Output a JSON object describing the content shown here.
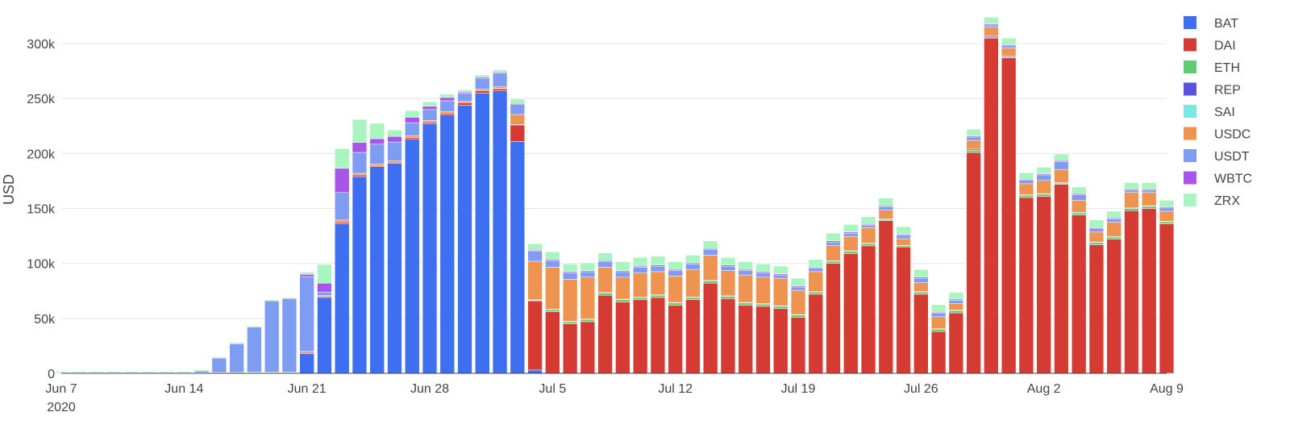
{
  "chart_data": {
    "type": "bar",
    "stacked": true,
    "ylabel": "USD",
    "xlabel": "",
    "ylim": [
      0,
      325000
    ],
    "grid": true,
    "legend_position": "right",
    "x_ticks": [
      {
        "date": "2020-06-07",
        "label": "Jun 7",
        "sub": "2020"
      },
      {
        "date": "2020-06-14",
        "label": "Jun 14",
        "sub": ""
      },
      {
        "date": "2020-06-21",
        "label": "Jun 21",
        "sub": ""
      },
      {
        "date": "2020-06-28",
        "label": "Jun 28",
        "sub": ""
      },
      {
        "date": "2020-07-05",
        "label": "Jul 5",
        "sub": ""
      },
      {
        "date": "2020-07-12",
        "label": "Jul 12",
        "sub": ""
      },
      {
        "date": "2020-07-19",
        "label": "Jul 19",
        "sub": ""
      },
      {
        "date": "2020-07-26",
        "label": "Jul 26",
        "sub": ""
      },
      {
        "date": "2020-08-02",
        "label": "Aug 2",
        "sub": ""
      },
      {
        "date": "2020-08-09",
        "label": "Aug 9",
        "sub": ""
      }
    ],
    "y_ticks": [
      {
        "value": 0,
        "label": "0"
      },
      {
        "value": 50000,
        "label": "50k"
      },
      {
        "value": 100000,
        "label": "100k"
      },
      {
        "value": 150000,
        "label": "150k"
      },
      {
        "value": 200000,
        "label": "200k"
      },
      {
        "value": 250000,
        "label": "250k"
      },
      {
        "value": 300000,
        "label": "300k"
      }
    ],
    "x": [
      "2020-06-07",
      "2020-06-08",
      "2020-06-09",
      "2020-06-10",
      "2020-06-11",
      "2020-06-12",
      "2020-06-13",
      "2020-06-14",
      "2020-06-15",
      "2020-06-16",
      "2020-06-17",
      "2020-06-18",
      "2020-06-19",
      "2020-06-20",
      "2020-06-21",
      "2020-06-22",
      "2020-06-23",
      "2020-06-24",
      "2020-06-25",
      "2020-06-26",
      "2020-06-27",
      "2020-06-28",
      "2020-06-29",
      "2020-06-30",
      "2020-07-01",
      "2020-07-02",
      "2020-07-03",
      "2020-07-04",
      "2020-07-05",
      "2020-07-06",
      "2020-07-07",
      "2020-07-08",
      "2020-07-09",
      "2020-07-10",
      "2020-07-11",
      "2020-07-12",
      "2020-07-13",
      "2020-07-14",
      "2020-07-15",
      "2020-07-16",
      "2020-07-17",
      "2020-07-18",
      "2020-07-19",
      "2020-07-20",
      "2020-07-21",
      "2020-07-22",
      "2020-07-23",
      "2020-07-24",
      "2020-07-25",
      "2020-07-26",
      "2020-07-27",
      "2020-07-28",
      "2020-07-29",
      "2020-07-30",
      "2020-07-31",
      "2020-08-01",
      "2020-08-02",
      "2020-08-03",
      "2020-08-04",
      "2020-08-05",
      "2020-08-06",
      "2020-08-07",
      "2020-08-08",
      "2020-08-09"
    ],
    "series": [
      {
        "name": "BAT",
        "color": "#3e6ff0",
        "values": [
          0,
          0,
          0,
          0,
          0,
          0,
          0,
          0,
          0,
          0,
          0,
          0,
          0,
          0,
          18000,
          69000,
          136000,
          179000,
          188000,
          191000,
          213000,
          227000,
          235000,
          244000,
          255000,
          257000,
          211000,
          3000,
          0,
          0,
          0,
          0,
          0,
          0,
          0,
          0,
          0,
          0,
          0,
          0,
          0,
          0,
          0,
          0,
          0,
          0,
          0,
          0,
          0,
          0,
          0,
          0,
          0,
          0,
          0,
          0,
          0,
          0,
          0,
          0,
          0,
          0,
          0,
          0
        ]
      },
      {
        "name": "DAI",
        "color": "#d63b33",
        "values": [
          300,
          300,
          300,
          300,
          300,
          300,
          300,
          300,
          300,
          400,
          400,
          500,
          500,
          500,
          1000,
          1000,
          1500,
          1500,
          1000,
          1000,
          1500,
          1500,
          1500,
          2000,
          2000,
          2000,
          15000,
          63000,
          56000,
          45000,
          47000,
          71000,
          65000,
          67000,
          69000,
          62000,
          67000,
          82000,
          68000,
          62000,
          61000,
          59000,
          51000,
          72000,
          100000,
          109000,
          116000,
          139000,
          115000,
          72000,
          38000,
          55000,
          201000,
          305000,
          287000,
          160000,
          161000,
          172000,
          144000,
          117000,
          122000,
          148000,
          150000,
          136000
        ]
      },
      {
        "name": "ETH",
        "color": "#5fcc73",
        "values": [
          0,
          0,
          0,
          0,
          0,
          0,
          0,
          0,
          0,
          0,
          0,
          0,
          0,
          0,
          0,
          0,
          0,
          0,
          0,
          0,
          0,
          0,
          0,
          0,
          0,
          0,
          0,
          500,
          2000,
          2000,
          2000,
          2000,
          2000,
          2000,
          2000,
          2000,
          2000,
          2000,
          2000,
          2000,
          2000,
          2000,
          2000,
          2000,
          2000,
          2000,
          2000,
          1000,
          1000,
          2000,
          2000,
          2000,
          2000,
          1000,
          1000,
          2000,
          2000,
          1000,
          2000,
          2000,
          2000,
          2000,
          2000,
          2000
        ]
      },
      {
        "name": "REP",
        "color": "#5b51e0",
        "values": [
          0,
          0,
          0,
          0,
          0,
          0,
          0,
          0,
          0,
          0,
          0,
          0,
          0,
          0,
          0,
          0,
          0,
          0,
          0,
          0,
          0,
          0,
          0,
          0,
          0,
          500,
          500,
          500,
          500,
          500,
          500,
          500,
          500,
          500,
          500,
          500,
          500,
          500,
          500,
          500,
          500,
          500,
          500,
          500,
          500,
          500,
          500,
          500,
          500,
          500,
          500,
          500,
          1000,
          1000,
          1000,
          500,
          500,
          500,
          500,
          500,
          500,
          500,
          500,
          500
        ]
      },
      {
        "name": "SAI",
        "color": "#7be8e1",
        "values": [
          0,
          0,
          0,
          0,
          0,
          0,
          0,
          0,
          0,
          0,
          0,
          0,
          0,
          0,
          0,
          0,
          0,
          0,
          0,
          0,
          0,
          0,
          0,
          0,
          0,
          0,
          0,
          0,
          0,
          0,
          0,
          0,
          0,
          0,
          0,
          0,
          0,
          0,
          0,
          0,
          0,
          0,
          0,
          0,
          0,
          0,
          0,
          0,
          0,
          0,
          0,
          0,
          0,
          0,
          0,
          0,
          0,
          0,
          0,
          0,
          0,
          0,
          0,
          0
        ]
      },
      {
        "name": "USDC",
        "color": "#ef9450",
        "values": [
          300,
          300,
          300,
          300,
          300,
          300,
          300,
          300,
          300,
          400,
          500,
          500,
          500,
          500,
          1000,
          1000,
          2000,
          1500,
          1500,
          1500,
          1500,
          1500,
          1500,
          1500,
          1500,
          1500,
          9000,
          35000,
          38000,
          38000,
          38000,
          23000,
          20000,
          22000,
          21000,
          24000,
          25000,
          23000,
          23000,
          25000,
          24000,
          25000,
          22000,
          18000,
          14000,
          13000,
          14000,
          8000,
          6000,
          8000,
          11000,
          6000,
          8000,
          8000,
          7000,
          10000,
          12000,
          12000,
          11000,
          9000,
          13000,
          14000,
          12000,
          9000
        ]
      },
      {
        "name": "USDT",
        "color": "#7e9cf2",
        "values": [
          0,
          0,
          0,
          0,
          0,
          0,
          0,
          0,
          1500,
          13000,
          26000,
          41000,
          65000,
          67000,
          68000,
          3000,
          25000,
          19000,
          18000,
          17000,
          12000,
          10000,
          10000,
          7500,
          10000,
          12000,
          9000,
          9000,
          6000,
          6000,
          5000,
          5000,
          5000,
          5000,
          5000,
          5000,
          5000,
          5000,
          4000,
          4000,
          4000,
          3000,
          3000,
          3000,
          3000,
          3000,
          2000,
          3000,
          3000,
          4000,
          3000,
          3000,
          3000,
          2000,
          2000,
          3000,
          5000,
          7000,
          5000,
          3000,
          3000,
          2000,
          2000,
          3000
        ]
      },
      {
        "name": "WBTC",
        "color": "#a855ea",
        "values": [
          0,
          0,
          0,
          0,
          0,
          0,
          0,
          0,
          0,
          0,
          0,
          0,
          0,
          0,
          2000,
          8000,
          22000,
          9000,
          5000,
          5000,
          5000,
          3000,
          3000,
          1000,
          1000,
          1000,
          1000,
          1000,
          1000,
          1000,
          1000,
          1000,
          1000,
          1000,
          1000,
          1000,
          1000,
          1000,
          1000,
          1000,
          1000,
          1000,
          1000,
          1000,
          1000,
          1000,
          1000,
          1000,
          1000,
          1000,
          1000,
          1000,
          1000,
          1000,
          1000,
          1000,
          1000,
          1000,
          1000,
          1000,
          1000,
          1000,
          1000,
          1000
        ]
      },
      {
        "name": "ZRX",
        "color": "#a9f5c0",
        "values": [
          1000,
          1000,
          1000,
          1000,
          1000,
          1000,
          1000,
          1000,
          1000,
          1000,
          1000,
          1000,
          1000,
          1000,
          2000,
          17000,
          18000,
          21000,
          14000,
          6000,
          6000,
          4000,
          3000,
          2000,
          2000,
          2000,
          4000,
          6000,
          7000,
          7000,
          7000,
          7000,
          8000,
          8000,
          8000,
          7000,
          7000,
          7000,
          7000,
          7000,
          7000,
          7000,
          7000,
          7000,
          7000,
          7000,
          7000,
          7000,
          7000,
          7000,
          7000,
          6000,
          6000,
          6000,
          6000,
          6000,
          6000,
          6000,
          6000,
          7000,
          6000,
          6000,
          6000,
          6000
        ]
      }
    ]
  }
}
